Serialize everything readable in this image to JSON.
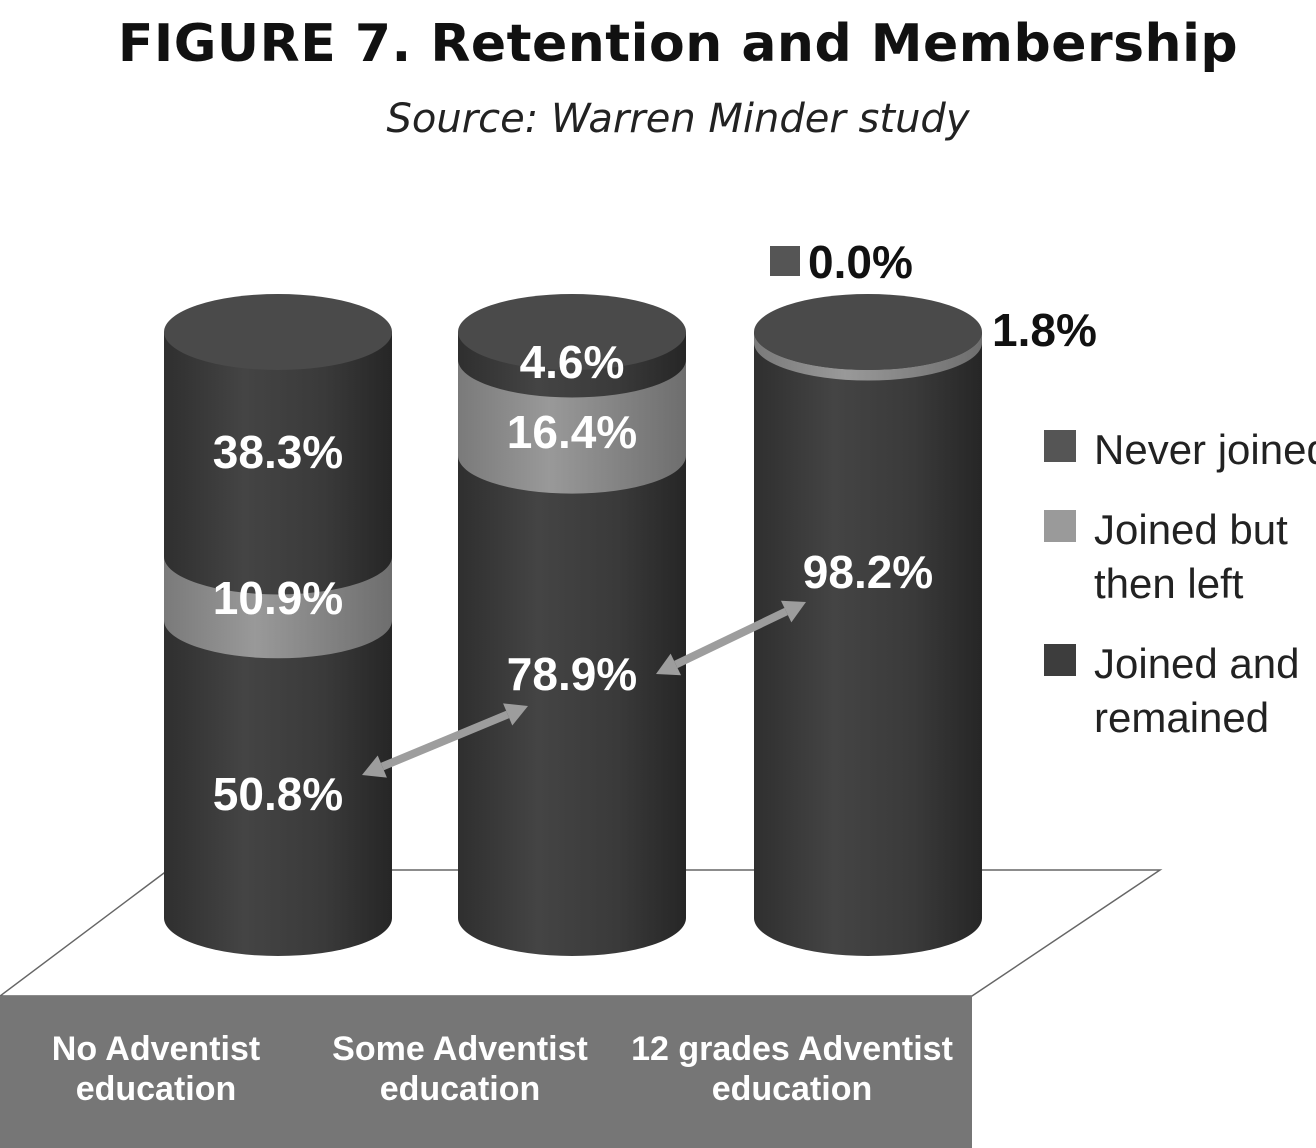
{
  "figure": {
    "title": "FIGURE 7. Retention and Membership",
    "subtitle": "Source: Warren Minder study"
  },
  "chart_data": {
    "type": "bar",
    "stacked": true,
    "style": "3d-cylinder",
    "categories": [
      "No Adventist education",
      "Some Adventist education",
      "12 grades Adventist education"
    ],
    "category_label_lines": [
      [
        "No Adventist",
        "education"
      ],
      [
        "Some Adventist",
        "education"
      ],
      [
        "12 grades Adventist",
        "education"
      ]
    ],
    "series": [
      {
        "name": "Joined and remained",
        "legend_lines": [
          "Joined and",
          "remained"
        ],
        "values": [
          50.8,
          78.9,
          98.2
        ],
        "labels": [
          "50.8%",
          "78.9%",
          "98.2%"
        ],
        "color": "#3d3d3d"
      },
      {
        "name": "Joined but then left",
        "legend_lines": [
          "Joined but",
          "then left"
        ],
        "values": [
          10.9,
          16.4,
          1.8
        ],
        "labels": [
          "10.9%",
          "16.4%",
          "1.8%"
        ],
        "color": "#8a8a8a"
      },
      {
        "name": "Never joined",
        "legend_lines": [
          "Never joined"
        ],
        "values": [
          38.3,
          4.6,
          0.0
        ],
        "labels": [
          "38.3%",
          "4.6%",
          "0.0%"
        ],
        "color": "#555555"
      }
    ],
    "legend_position": "right",
    "colors": {
      "base_platform": "#777777",
      "cylinder_body": "#3d3d3d",
      "arrow": "#9a9a9a"
    }
  }
}
